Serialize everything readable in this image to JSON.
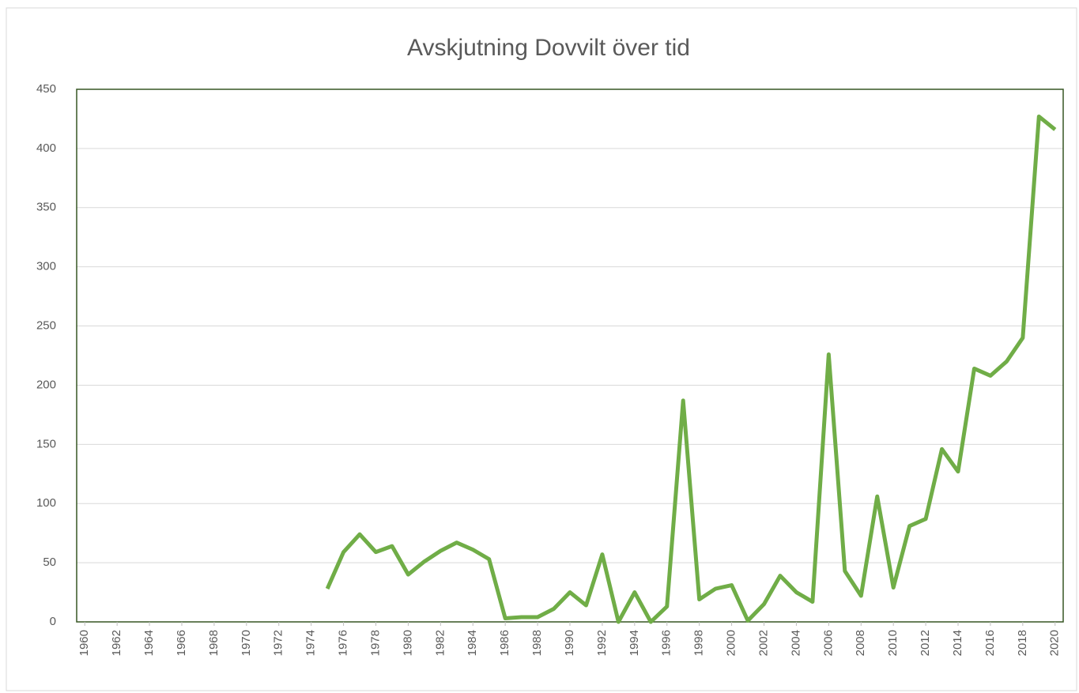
{
  "chart_data": {
    "type": "line",
    "title": "Avskjutning Dovvilt över tid",
    "x": [
      1960,
      1961,
      1962,
      1963,
      1964,
      1965,
      1966,
      1967,
      1968,
      1969,
      1970,
      1971,
      1972,
      1973,
      1974,
      1975,
      1976,
      1977,
      1978,
      1979,
      1980,
      1981,
      1982,
      1983,
      1984,
      1985,
      1986,
      1987,
      1988,
      1989,
      1990,
      1991,
      1992,
      1993,
      1994,
      1995,
      1996,
      1997,
      1998,
      1999,
      2000,
      2001,
      2002,
      2003,
      2004,
      2005,
      2006,
      2007,
      2008,
      2009,
      2010,
      2011,
      2012,
      2013,
      2014,
      2015,
      2016,
      2017,
      2018,
      2019,
      2020
    ],
    "series": [
      {
        "color": "#70ad47",
        "values": [
          null,
          null,
          null,
          null,
          null,
          null,
          null,
          null,
          null,
          null,
          null,
          null,
          null,
          null,
          null,
          28,
          59,
          74,
          59,
          64,
          40,
          51,
          60,
          67,
          61,
          53,
          3,
          4,
          4,
          11,
          25,
          14,
          57,
          0,
          25,
          0,
          13,
          187,
          19,
          28,
          31,
          1,
          15,
          39,
          25,
          17,
          226,
          43,
          22,
          106,
          29,
          81,
          87,
          146,
          127,
          214,
          208,
          220,
          240,
          427,
          416
        ]
      }
    ],
    "xlim": [
      1959.5,
      2020.5
    ],
    "xticks": [
      1960,
      1962,
      1964,
      1966,
      1968,
      1970,
      1972,
      1974,
      1976,
      1978,
      1980,
      1982,
      1984,
      1986,
      1988,
      1990,
      1992,
      1994,
      1996,
      1998,
      2000,
      2002,
      2004,
      2006,
      2008,
      2010,
      2012,
      2014,
      2016,
      2018,
      2020
    ],
    "ylim": [
      0,
      450
    ],
    "yticks": [
      0,
      50,
      100,
      150,
      200,
      250,
      300,
      350,
      400,
      450
    ],
    "grid": true
  }
}
